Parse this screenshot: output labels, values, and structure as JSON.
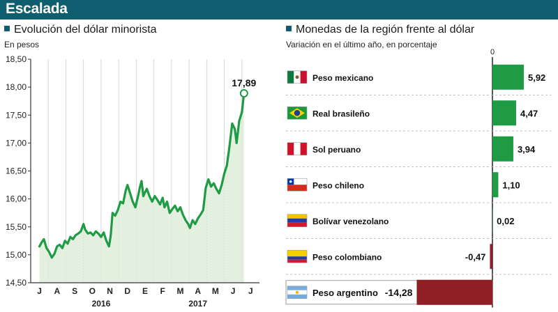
{
  "header": {
    "title": "Escalada"
  },
  "colors": {
    "header_bg": "#0e5e6f",
    "line": "#1f9a45",
    "area": "#e4f0df",
    "positive_bar": "#1f9a45",
    "negative_bar": "#8f1f24"
  },
  "chart_data": [
    {
      "type": "area",
      "title": "Evolución del dólar minorista",
      "subtitle": "En pesos",
      "ylim": [
        14.5,
        18.5
      ],
      "yticks": [
        "14,50",
        "15,00",
        "15,50",
        "16,00",
        "16,50",
        "17,00",
        "17,50",
        "18,00",
        "18,50"
      ],
      "ytick_values": [
        14.5,
        15.0,
        15.5,
        16.0,
        16.5,
        17.0,
        17.5,
        18.0,
        18.5
      ],
      "month_labels": [
        "J",
        "A",
        "S",
        "O",
        "N",
        "D",
        "E",
        "F",
        "M",
        "A",
        "M",
        "J",
        "J"
      ],
      "year_labels": [
        {
          "label": "2016",
          "month_index": 3.5
        },
        {
          "label": "2017",
          "month_index": 9.0
        }
      ],
      "grid": "vertical",
      "x_unit": "months since July 2016",
      "series": [
        {
          "points": [
            [
              0.0,
              15.15
            ],
            [
              0.12,
              15.22
            ],
            [
              0.25,
              15.28
            ],
            [
              0.4,
              15.12
            ],
            [
              0.55,
              15.05
            ],
            [
              0.7,
              14.95
            ],
            [
              0.85,
              15.02
            ],
            [
              1.0,
              15.15
            ],
            [
              1.15,
              15.18
            ],
            [
              1.3,
              15.12
            ],
            [
              1.45,
              15.25
            ],
            [
              1.6,
              15.2
            ],
            [
              1.75,
              15.32
            ],
            [
              1.9,
              15.28
            ],
            [
              2.05,
              15.35
            ],
            [
              2.2,
              15.38
            ],
            [
              2.35,
              15.42
            ],
            [
              2.5,
              15.55
            ],
            [
              2.6,
              15.45
            ],
            [
              2.75,
              15.38
            ],
            [
              2.9,
              15.4
            ],
            [
              3.05,
              15.35
            ],
            [
              3.2,
              15.42
            ],
            [
              3.35,
              15.38
            ],
            [
              3.5,
              15.32
            ],
            [
              3.65,
              15.4
            ],
            [
              3.8,
              15.25
            ],
            [
              3.95,
              15.15
            ],
            [
              4.05,
              15.35
            ],
            [
              4.15,
              15.75
            ],
            [
              4.3,
              15.7
            ],
            [
              4.45,
              15.8
            ],
            [
              4.6,
              15.95
            ],
            [
              4.75,
              15.92
            ],
            [
              4.9,
              16.15
            ],
            [
              5.0,
              16.25
            ],
            [
              5.15,
              16.1
            ],
            [
              5.3,
              15.95
            ],
            [
              5.45,
              15.85
            ],
            [
              5.6,
              16.05
            ],
            [
              5.7,
              16.2
            ],
            [
              5.8,
              16.32
            ],
            [
              5.9,
              16.05
            ],
            [
              6.0,
              16.12
            ],
            [
              6.1,
              16.18
            ],
            [
              6.25,
              16.05
            ],
            [
              6.4,
              15.95
            ],
            [
              6.55,
              16.05
            ],
            [
              6.7,
              15.98
            ],
            [
              6.85,
              15.9
            ],
            [
              7.0,
              16.02
            ],
            [
              7.1,
              15.85
            ],
            [
              7.25,
              15.95
            ],
            [
              7.4,
              15.75
            ],
            [
              7.55,
              15.82
            ],
            [
              7.7,
              15.88
            ],
            [
              7.85,
              15.78
            ],
            [
              8.0,
              15.85
            ],
            [
              8.15,
              15.72
            ],
            [
              8.3,
              15.62
            ],
            [
              8.45,
              15.55
            ],
            [
              8.55,
              15.48
            ],
            [
              8.7,
              15.62
            ],
            [
              8.85,
              15.55
            ],
            [
              9.0,
              15.65
            ],
            [
              9.15,
              15.72
            ],
            [
              9.3,
              15.8
            ],
            [
              9.45,
              16.2
            ],
            [
              9.6,
              16.35
            ],
            [
              9.75,
              16.22
            ],
            [
              9.9,
              16.28
            ],
            [
              10.05,
              16.18
            ],
            [
              10.2,
              16.1
            ],
            [
              10.35,
              16.25
            ],
            [
              10.5,
              16.45
            ],
            [
              10.65,
              16.6
            ],
            [
              10.8,
              16.95
            ],
            [
              10.95,
              17.35
            ],
            [
              11.1,
              17.25
            ],
            [
              11.2,
              17.0
            ],
            [
              11.35,
              17.4
            ],
            [
              11.5,
              17.55
            ],
            [
              11.62,
              17.89
            ]
          ],
          "end_label": "17,89"
        }
      ]
    },
    {
      "type": "bar",
      "orientation": "horizontal",
      "title": "Monedas de la región frente al dólar",
      "subtitle": "Variación en el último año, en porcentaje",
      "zero_label": "0",
      "categories": [
        "Peso mexicano",
        "Real brasileño",
        "Sol peruano",
        "Peso chileno",
        "Bolívar venezolano",
        "Peso colombiano",
        "Peso argentino"
      ],
      "values": [
        5.92,
        4.47,
        3.94,
        1.1,
        0.02,
        -0.47,
        -14.28
      ],
      "value_labels": [
        "5,92",
        "4,47",
        "3,94",
        "1,10",
        "0,02",
        "-0,47",
        "-14,28"
      ],
      "flags": [
        "mexico-flag",
        "brazil-flag",
        "peru-flag",
        "chile-flag",
        "venezuela-flag",
        "colombia-flag",
        "argentina-flag"
      ],
      "highlight": "Peso argentino"
    }
  ]
}
